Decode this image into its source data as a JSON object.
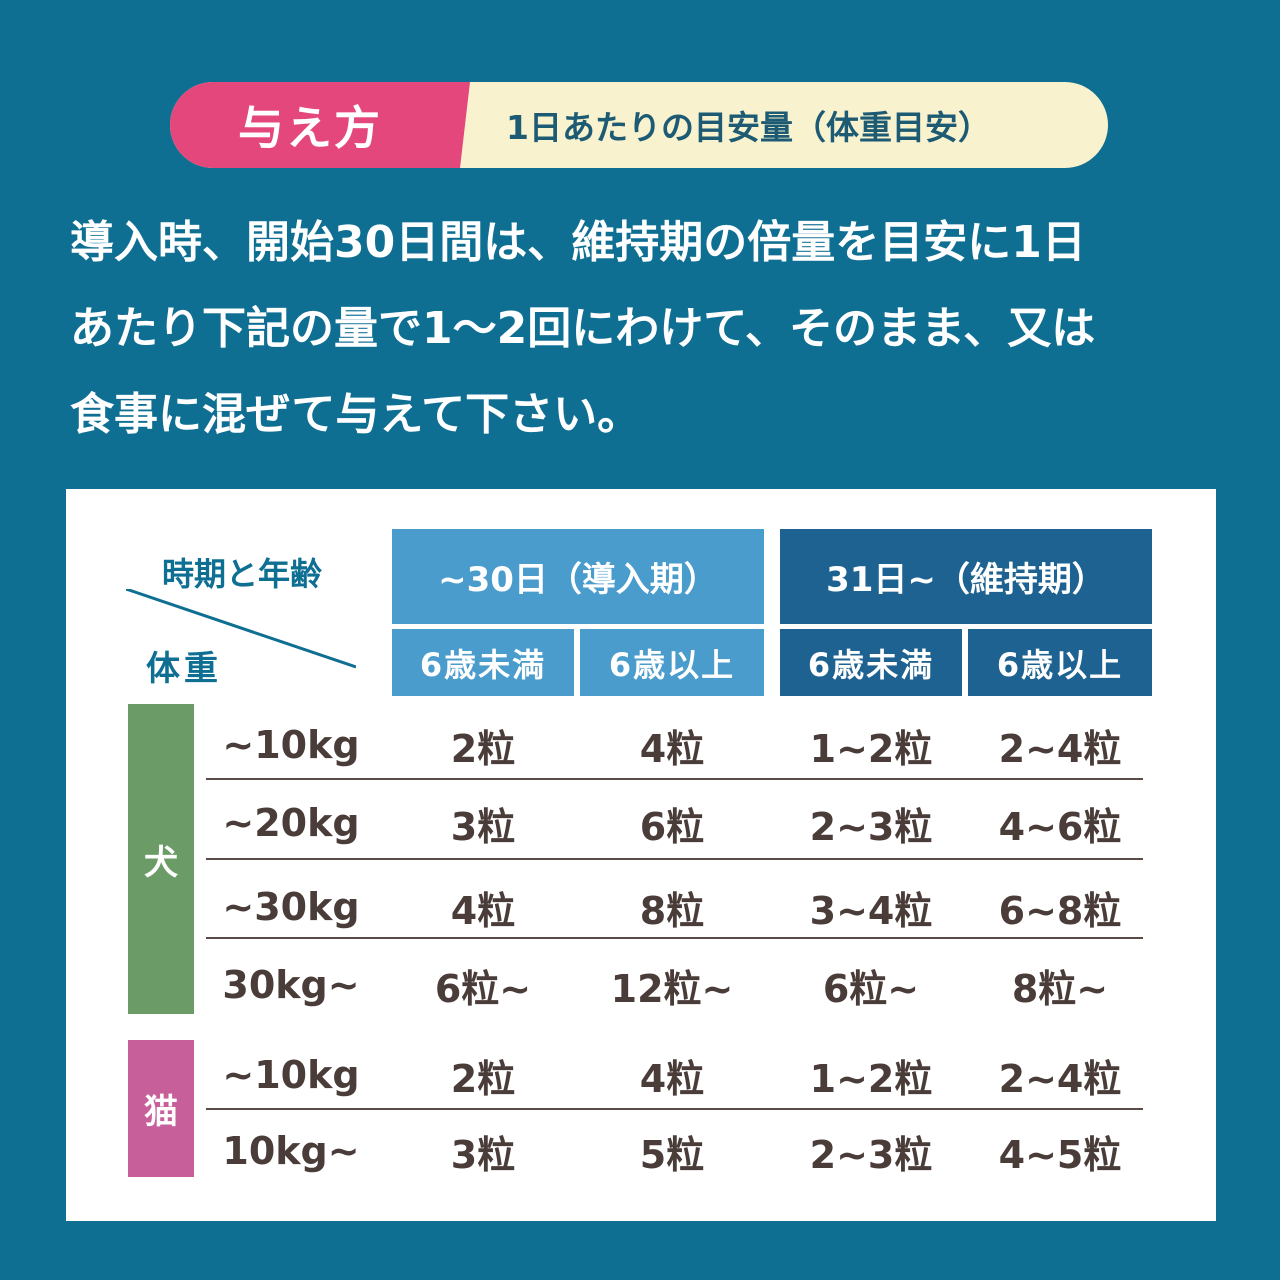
{
  "header": {
    "tag": "与え方",
    "subtitle": "1日あたりの目安量（体重目安）"
  },
  "intro": {
    "lines": [
      "導入時、開始30日間は、維持期の倍量を目安に1日",
      "あたり下記の量で1～2回にわけて、そのまま、又は",
      "食事に混ぜて与えて下さい。"
    ]
  },
  "table": {
    "corner_top": "時期と年齢",
    "corner_bottom": "体重",
    "groups": [
      "~30日（導入期）",
      "31日~（維持期）"
    ],
    "subgroups": [
      "6歳未満",
      "6歳以上",
      "6歳未満",
      "6歳以上"
    ],
    "dog_label": "犬",
    "cat_label": "猫",
    "dog_rows": [
      {
        "weight": "~10kg",
        "values": [
          "2粒",
          "4粒",
          "1~2粒",
          "2~4粒"
        ]
      },
      {
        "weight": "~20kg",
        "values": [
          "3粒",
          "6粒",
          "2~3粒",
          "4~6粒"
        ]
      },
      {
        "weight": "~30kg",
        "values": [
          "4粒",
          "8粒",
          "3~4粒",
          "6~8粒"
        ]
      },
      {
        "weight": "30kg~",
        "values": [
          "6粒~",
          "12粒~",
          "6粒~",
          "8粒~"
        ]
      }
    ],
    "cat_rows": [
      {
        "weight": "~10kg",
        "values": [
          "2粒",
          "4粒",
          "1~2粒",
          "2~4粒"
        ]
      },
      {
        "weight": "10kg~",
        "values": [
          "3粒",
          "5粒",
          "2~3粒",
          "4~5粒"
        ]
      }
    ]
  },
  "colors": {
    "background": "#0f6f93",
    "tag_pink": "#e4477b",
    "pill_cream": "#f8f2cf",
    "header_light_blue": "#4a9ccd",
    "header_dark_blue": "#1d6290",
    "dog_green": "#6b9c68",
    "cat_pink": "#c7609a"
  }
}
